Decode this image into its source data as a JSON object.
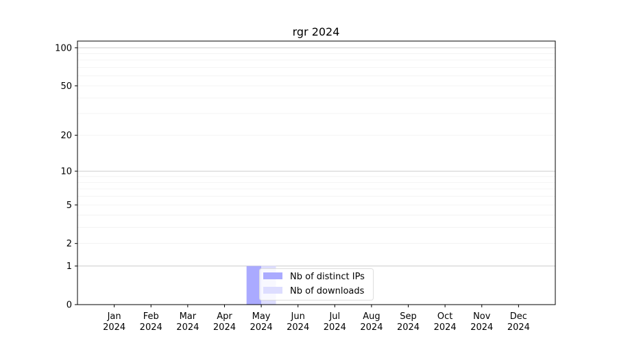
{
  "chart_data": {
    "type": "bar",
    "title": "rgr 2024",
    "xlabel": "",
    "ylabel": "",
    "categories": [
      "Jan\n2024",
      "Feb\n2024",
      "Mar\n2024",
      "Apr\n2024",
      "May\n2024",
      "Jun\n2024",
      "Jul\n2024",
      "Aug\n2024",
      "Sep\n2024",
      "Oct\n2024",
      "Nov\n2024",
      "Dec\n2024"
    ],
    "series": [
      {
        "name": "Nb of distinct IPs",
        "color": "#aaaaff",
        "values": [
          0,
          0,
          0,
          0,
          1,
          0,
          0,
          0,
          0,
          0,
          0,
          0
        ]
      },
      {
        "name": "Nb of downloads",
        "color": "#ddddff",
        "values": [
          0,
          0,
          0,
          0,
          1,
          0,
          0,
          0,
          0,
          0,
          0,
          0
        ]
      }
    ],
    "y_scale": "log(1+y)",
    "ylim": [
      0,
      113
    ],
    "yticks": [
      0,
      1,
      2,
      5,
      10,
      20,
      50,
      100
    ],
    "ytick_labels": [
      "0",
      "1",
      "2",
      "5",
      "10",
      "20",
      "50",
      "100"
    ],
    "grid": true,
    "legend_placement": "lower center"
  }
}
